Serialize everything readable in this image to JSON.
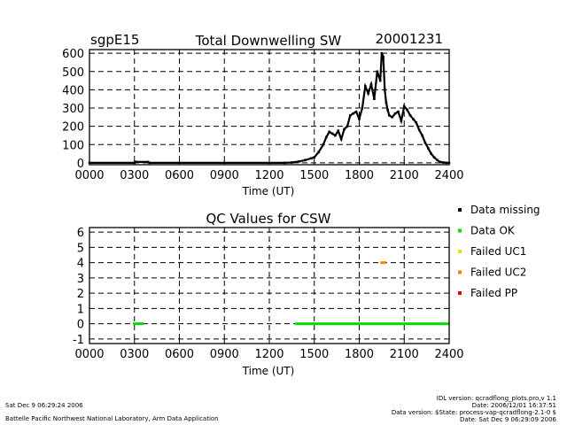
{
  "chart_data": [
    {
      "type": "scatter",
      "title": "Total Downwelling SW",
      "site_label": "sgpE15",
      "date_label": "20001231",
      "xlabel": "Time (UT)",
      "ylabel": "",
      "xlim": [
        0,
        2400
      ],
      "ylim": [
        -10,
        620
      ],
      "x_ticks": [
        0,
        300,
        600,
        900,
        1200,
        1500,
        1800,
        2100,
        2400
      ],
      "x_tick_labels": [
        "0000",
        "0300",
        "0600",
        "0900",
        "1200",
        "1500",
        "1800",
        "2100",
        "2400"
      ],
      "y_ticks": [
        0,
        100,
        200,
        300,
        400,
        500,
        600
      ],
      "y_tick_labels": [
        "0",
        "100",
        "200",
        "300",
        "400",
        "500",
        "600"
      ],
      "grid": true,
      "series": [
        {
          "name": "Total Downwelling SW",
          "color": "#000000",
          "x": [
            0,
            300,
            310,
            390,
            400,
            1300,
            1350,
            1400,
            1440,
            1480,
            1500,
            1530,
            1560,
            1580,
            1600,
            1620,
            1640,
            1660,
            1680,
            1700,
            1720,
            1740,
            1760,
            1780,
            1800,
            1820,
            1840,
            1860,
            1880,
            1900,
            1920,
            1940,
            1950,
            1960,
            1970,
            1980,
            1990,
            2000,
            2020,
            2040,
            2060,
            2080,
            2100,
            2120,
            2140,
            2160,
            2180,
            2200,
            2220,
            2240,
            2260,
            2280,
            2300,
            2320,
            2340,
            2360,
            2380,
            2400
          ],
          "y": [
            0,
            0,
            5,
            5,
            0,
            0,
            2,
            8,
            15,
            25,
            30,
            60,
            100,
            140,
            170,
            160,
            150,
            175,
            130,
            185,
            200,
            260,
            270,
            280,
            240,
            300,
            420,
            380,
            430,
            350,
            500,
            450,
            600,
            580,
            400,
            330,
            290,
            260,
            250,
            270,
            280,
            230,
            310,
            290,
            260,
            240,
            220,
            180,
            150,
            110,
            80,
            50,
            30,
            15,
            5,
            2,
            0,
            0
          ]
        }
      ]
    },
    {
      "type": "scatter",
      "title": "QC Values for CSW",
      "xlabel": "Time (UT)",
      "ylabel": "",
      "xlim": [
        0,
        2400
      ],
      "ylim": [
        -1.3,
        6.3
      ],
      "x_ticks": [
        0,
        300,
        600,
        900,
        1200,
        1500,
        1800,
        2100,
        2400
      ],
      "x_tick_labels": [
        "0000",
        "0300",
        "0600",
        "0900",
        "1200",
        "1500",
        "1800",
        "2100",
        "2400"
      ],
      "y_ticks": [
        -1,
        0,
        1,
        2,
        3,
        4,
        5,
        6
      ],
      "y_tick_labels": [
        "-1",
        "0",
        "1",
        "2",
        "3",
        "4",
        "5",
        "6"
      ],
      "grid": true,
      "legend": "right",
      "legend_entries": [
        {
          "label": "Data missing",
          "color": "#000000"
        },
        {
          "label": "Data OK",
          "color": "#00e000"
        },
        {
          "label": "Failed UC1",
          "color": "#e8e000"
        },
        {
          "label": "Failed UC2",
          "color": "#ff8000"
        },
        {
          "label": "Failed PP",
          "color": "#e00000"
        }
      ],
      "segments": [
        {
          "name": "Data OK",
          "color": "#00e000",
          "x_start": 290,
          "x_end": 360,
          "y": 0
        },
        {
          "name": "Data OK",
          "color": "#00e000",
          "x_start": 1370,
          "x_end": 2400,
          "y": 0
        },
        {
          "name": "Failed UC2",
          "color": "#ff8000",
          "x_start": 1940,
          "x_end": 1980,
          "y": 4
        }
      ]
    }
  ],
  "footer": {
    "left_line1": "Sat Dec  9 06:29:24 2006",
    "left_line2": "Battelle Pacific Northwest National Laboratory, Arm Data Application",
    "right_line1": "IDL version: qcradflong_plots.pro,v 1.1",
    "right_line2": "Date: 2006/12/01 16:37:51",
    "right_line3": "Data version: $State: process-vap-qcradflong-2.1-0 $",
    "right_line4": "Date: Sat Dec  9 06:29:09 2006"
  }
}
